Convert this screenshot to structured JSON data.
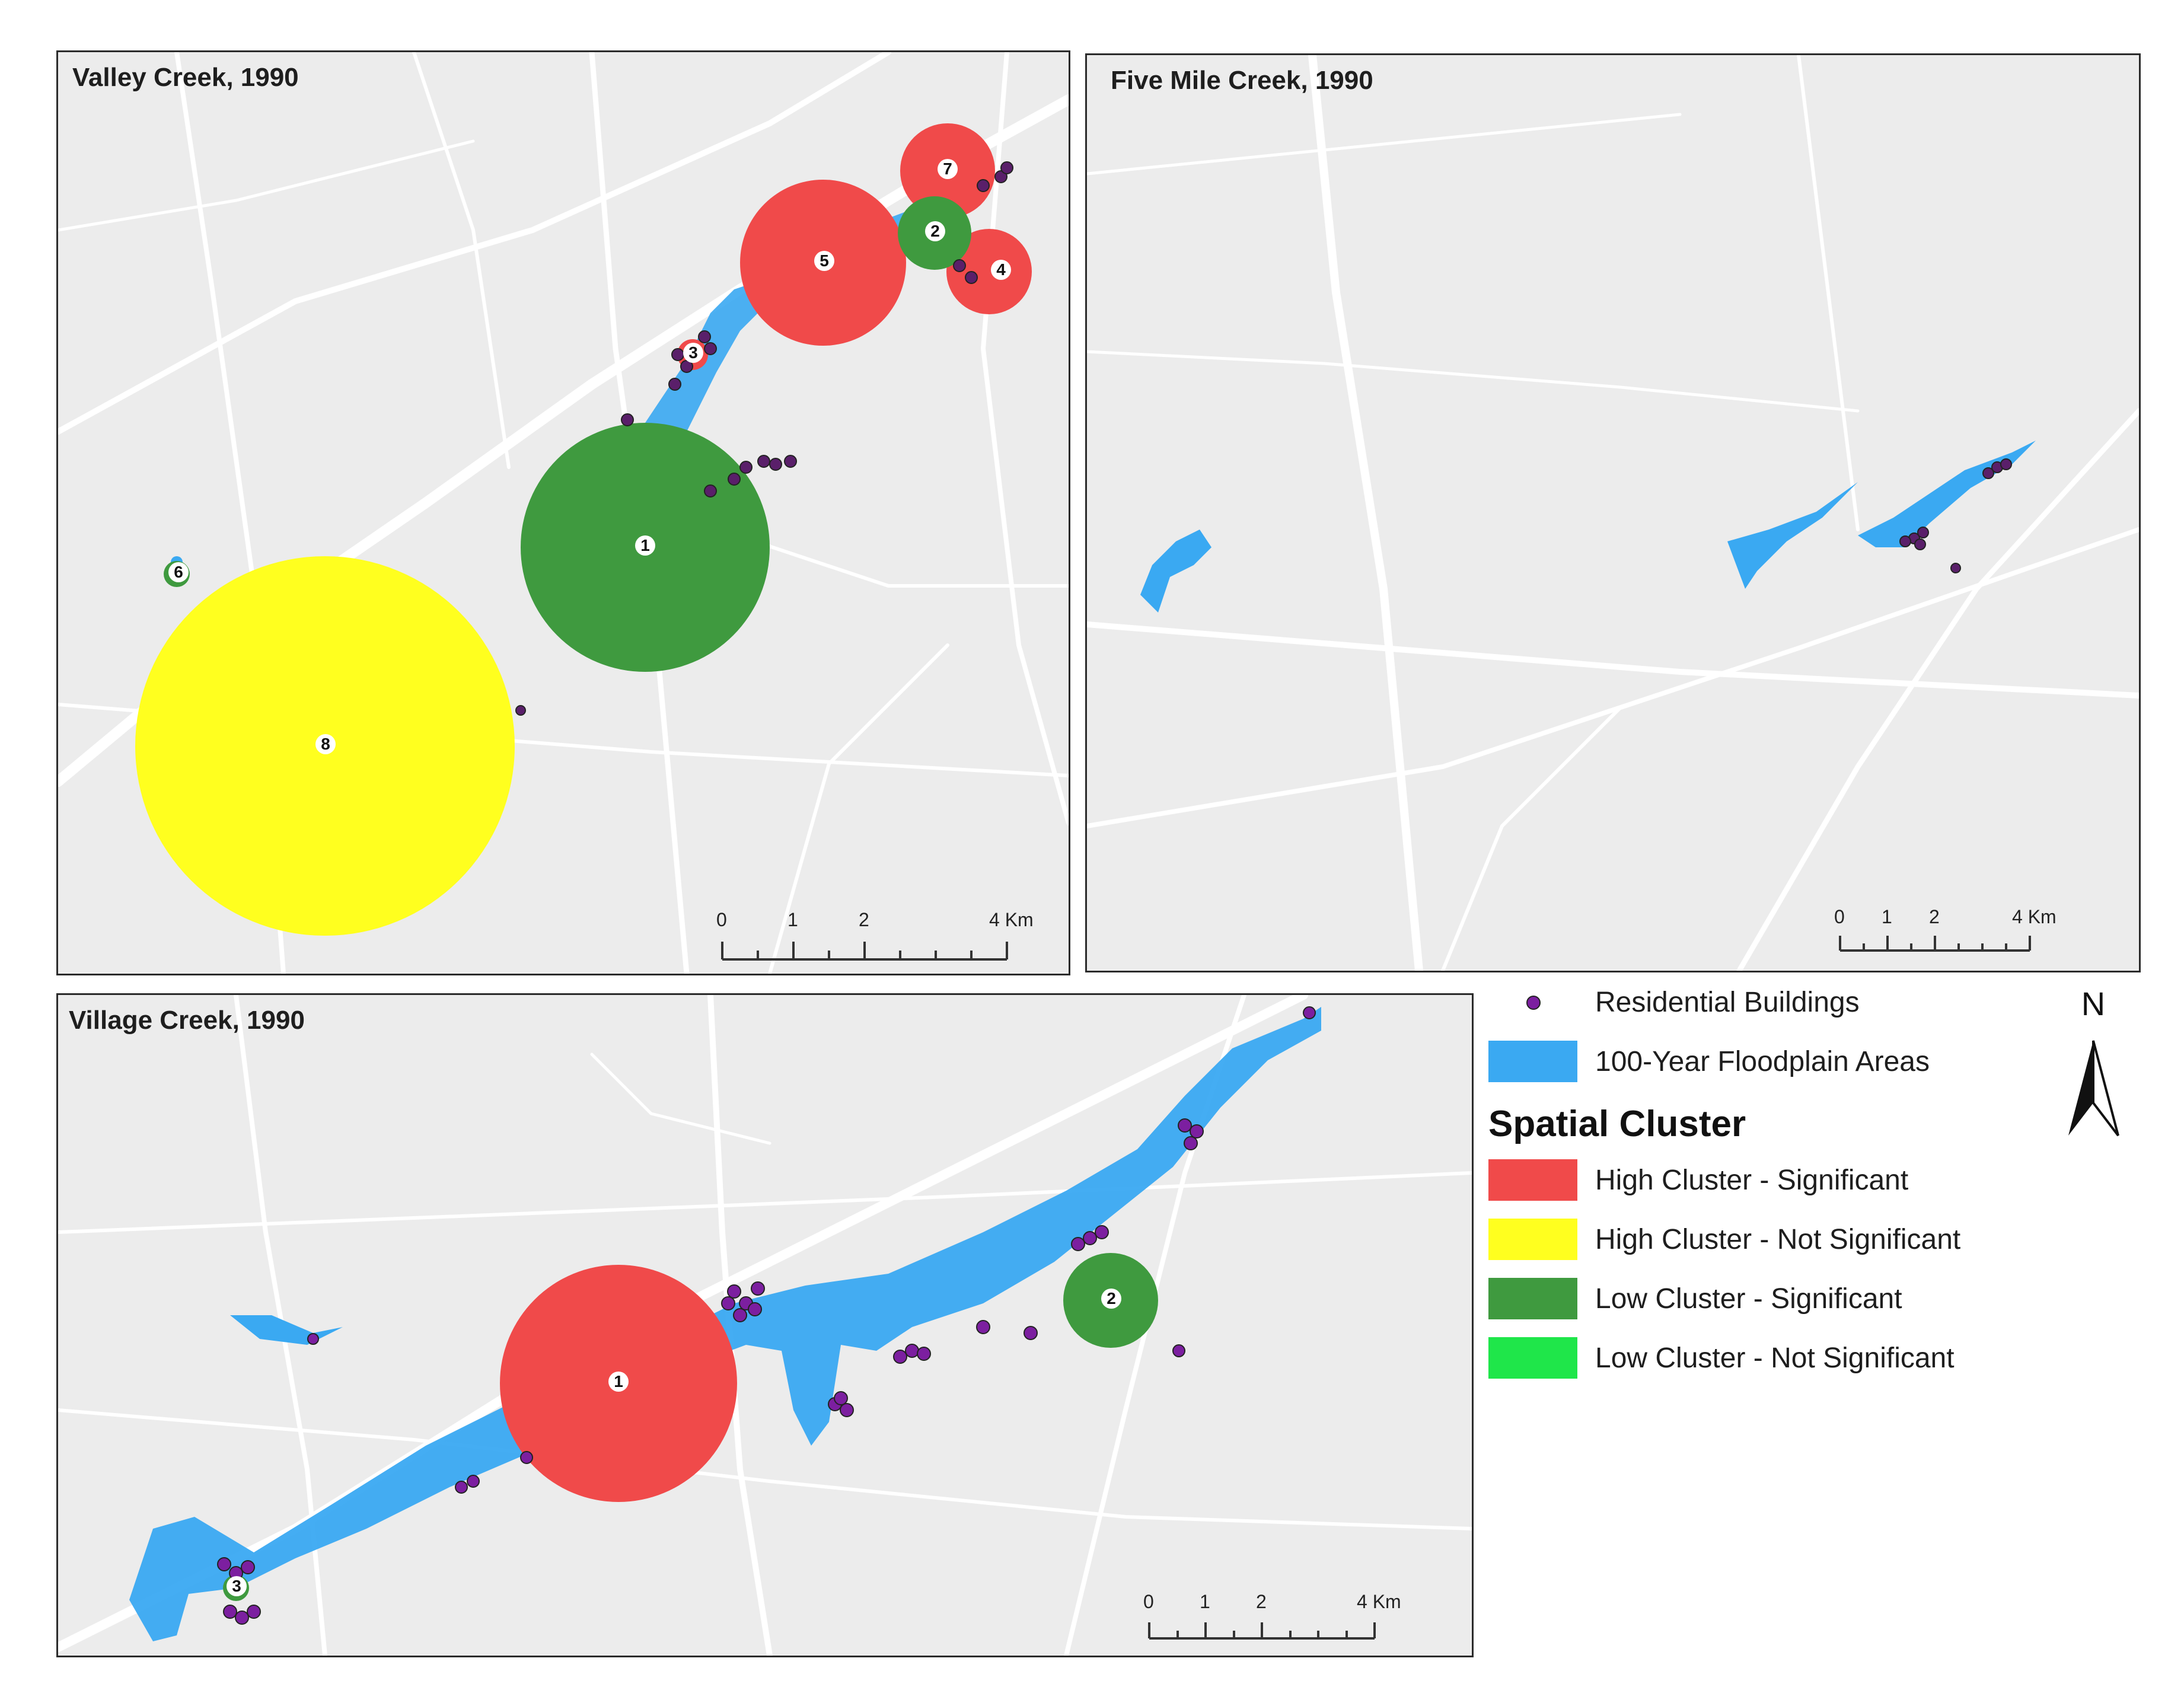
{
  "panels": {
    "valley": {
      "title": "Valley Creek, 1990"
    },
    "fivemile": {
      "title": "Five Mile Creek, 1990"
    },
    "village": {
      "title": "Village Creek, 1990"
    }
  },
  "clusters": {
    "valley": [
      "1",
      "2",
      "3",
      "4",
      "5",
      "6",
      "7",
      "8"
    ],
    "village": [
      "1",
      "2",
      "3"
    ]
  },
  "scalebar": {
    "ticks": [
      "0",
      "1",
      "2",
      "4 Km"
    ]
  },
  "legend": {
    "residential": "Residential Buildings",
    "floodplain": "100-Year Floodplain Areas",
    "heading": "Spatial Cluster",
    "items": [
      {
        "label": "High Cluster - Significant",
        "color": "#f04a4a"
      },
      {
        "label": "High Cluster - Not Significant",
        "color": "#ffff1f"
      },
      {
        "label": "Low Cluster - Significant",
        "color": "#3f9a3f"
      },
      {
        "label": "Low Cluster - Not Significant",
        "color": "#1fe64a"
      }
    ]
  },
  "colors": {
    "floodplain": "#3aa9f2",
    "building": "#7c1fa0"
  },
  "north": "N"
}
